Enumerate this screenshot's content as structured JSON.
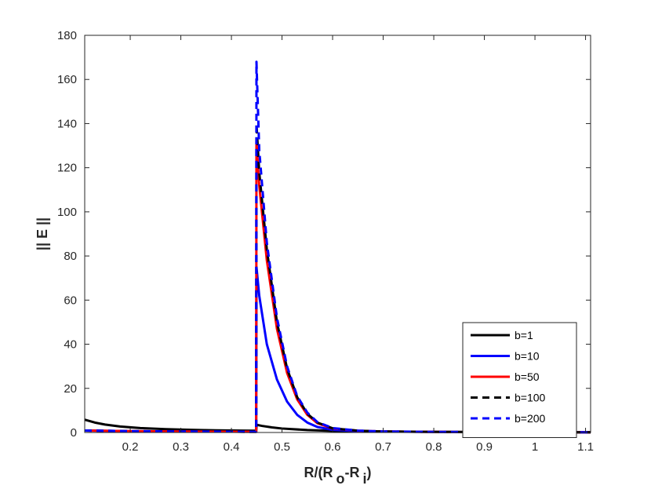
{
  "chart_data": {
    "type": "line",
    "xlabel_parts": {
      "pre": "R/(R",
      "sub1": "o",
      "mid": "-R",
      "sub2": "i",
      "post": ")"
    },
    "ylabel": "|| E ||",
    "xlim": [
      0.11,
      1.11
    ],
    "ylim": [
      0,
      180
    ],
    "xticks": [
      0.2,
      0.3,
      0.4,
      0.5,
      0.6,
      0.7,
      0.8,
      0.9,
      1,
      1.1
    ],
    "xtick_labels": [
      "0.2",
      "0.3",
      "0.4",
      "0.5",
      "0.6",
      "0.7",
      "0.8",
      "0.9",
      "1",
      "1.1"
    ],
    "yticks": [
      0,
      20,
      40,
      60,
      80,
      100,
      120,
      140,
      160,
      180
    ],
    "ytick_labels": [
      "0",
      "20",
      "40",
      "60",
      "80",
      "100",
      "120",
      "140",
      "160",
      "180"
    ],
    "grid": false,
    "legend_position": "bottom-right",
    "series": [
      {
        "name": "b=1",
        "color": "#000000",
        "dash": "solid",
        "x": [
          0.11,
          0.13,
          0.15,
          0.18,
          0.22,
          0.27,
          0.32,
          0.37,
          0.42,
          0.447,
          0.449,
          0.45,
          0.46,
          0.48,
          0.5,
          0.55,
          0.6,
          0.7,
          0.8,
          0.9,
          1.0,
          1.11
        ],
        "y": [
          5.8,
          4.5,
          3.6,
          2.7,
          2.0,
          1.5,
          1.2,
          1.0,
          0.85,
          0.8,
          0.8,
          3.5,
          3.0,
          2.3,
          1.8,
          1.1,
          0.7,
          0.45,
          0.3,
          0.22,
          0.15,
          0.1
        ]
      },
      {
        "name": "b=10",
        "color": "#0000ff",
        "dash": "solid",
        "x": [
          0.11,
          0.2,
          0.3,
          0.4,
          0.447,
          0.449,
          0.4495,
          0.455,
          0.47,
          0.49,
          0.51,
          0.53,
          0.55,
          0.57,
          0.6,
          0.65,
          0.7,
          0.8,
          0.9,
          1.0,
          1.11
        ],
        "y": [
          0.9,
          0.6,
          0.45,
          0.35,
          0.3,
          0.3,
          75,
          62,
          40,
          24,
          14,
          8,
          4.5,
          2.5,
          1.2,
          0.6,
          0.4,
          0.25,
          0.15,
          0.1,
          0.08
        ]
      },
      {
        "name": "b=50",
        "color": "#ff0000",
        "dash": "solid",
        "x": [
          0.11,
          0.2,
          0.3,
          0.4,
          0.447,
          0.449,
          0.4495,
          0.455,
          0.47,
          0.49,
          0.51,
          0.53,
          0.55,
          0.57,
          0.6,
          0.65,
          0.7,
          0.8,
          0.9,
          1.0,
          1.11
        ],
        "y": [
          0.9,
          0.6,
          0.45,
          0.35,
          0.3,
          0.3,
          132,
          112,
          78,
          47,
          27,
          15,
          8,
          4.2,
          1.8,
          0.8,
          0.45,
          0.25,
          0.15,
          0.1,
          0.08
        ]
      },
      {
        "name": "b=100",
        "color": "#000000",
        "dash": "dashed",
        "x": [
          0.11,
          0.2,
          0.3,
          0.4,
          0.447,
          0.449,
          0.4495,
          0.455,
          0.47,
          0.49,
          0.51,
          0.53,
          0.55,
          0.57,
          0.6,
          0.65,
          0.7,
          0.8,
          0.9,
          1.0,
          1.11
        ],
        "y": [
          0.9,
          0.6,
          0.45,
          0.35,
          0.3,
          0.3,
          140,
          118,
          83,
          50,
          29,
          16,
          8.5,
          4.5,
          1.9,
          0.8,
          0.45,
          0.25,
          0.15,
          0.1,
          0.08
        ]
      },
      {
        "name": "b=200",
        "color": "#0000ff",
        "dash": "dashed",
        "x": [
          0.11,
          0.2,
          0.3,
          0.4,
          0.447,
          0.449,
          0.4495,
          0.455,
          0.47,
          0.49,
          0.51,
          0.53,
          0.55,
          0.57,
          0.6,
          0.65,
          0.7,
          0.8,
          0.9,
          1.0,
          1.11
        ],
        "y": [
          0.9,
          0.6,
          0.45,
          0.35,
          0.3,
          0.3,
          168,
          128,
          86,
          52,
          30,
          16.5,
          9,
          4.7,
          2.0,
          0.85,
          0.45,
          0.25,
          0.15,
          0.1,
          0.08
        ]
      }
    ]
  }
}
